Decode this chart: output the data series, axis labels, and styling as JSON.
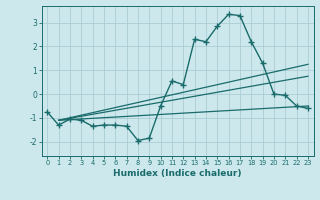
{
  "xlabel": "Humidex (Indice chaleur)",
  "ylabel": "",
  "bg_color": "#cce8ec",
  "grid_color": "#aacdd4",
  "line_color": "#1a6b6b",
  "xlim": [
    -0.5,
    23.5
  ],
  "ylim": [
    -2.6,
    3.7
  ],
  "yticks": [
    -2,
    -1,
    0,
    1,
    2,
    3
  ],
  "xticks": [
    0,
    1,
    2,
    3,
    4,
    5,
    6,
    7,
    8,
    9,
    10,
    11,
    12,
    13,
    14,
    15,
    16,
    17,
    18,
    19,
    20,
    21,
    22,
    23
  ],
  "series": [
    {
      "x": [
        0,
        1,
        2,
        3,
        4,
        5,
        6,
        7,
        8,
        9,
        10,
        11,
        12,
        13,
        14,
        15,
        16,
        17,
        18,
        19,
        20,
        21,
        22,
        23
      ],
      "y": [
        -0.75,
        -1.3,
        -1.05,
        -1.1,
        -1.35,
        -1.3,
        -1.3,
        -1.35,
        -1.95,
        -1.85,
        -0.5,
        0.55,
        0.4,
        2.3,
        2.2,
        2.85,
        3.35,
        3.3,
        2.2,
        1.3,
        0.0,
        -0.05,
        -0.5,
        -0.6
      ],
      "marker": "+",
      "markersize": 4,
      "linewidth": 1.0
    },
    {
      "x": [
        1,
        23
      ],
      "y": [
        -1.1,
        -0.5
      ],
      "marker": null,
      "linewidth": 0.9
    },
    {
      "x": [
        1,
        23
      ],
      "y": [
        -1.1,
        0.75
      ],
      "marker": null,
      "linewidth": 0.9
    },
    {
      "x": [
        1,
        23
      ],
      "y": [
        -1.1,
        1.25
      ],
      "marker": null,
      "linewidth": 0.9
    }
  ]
}
